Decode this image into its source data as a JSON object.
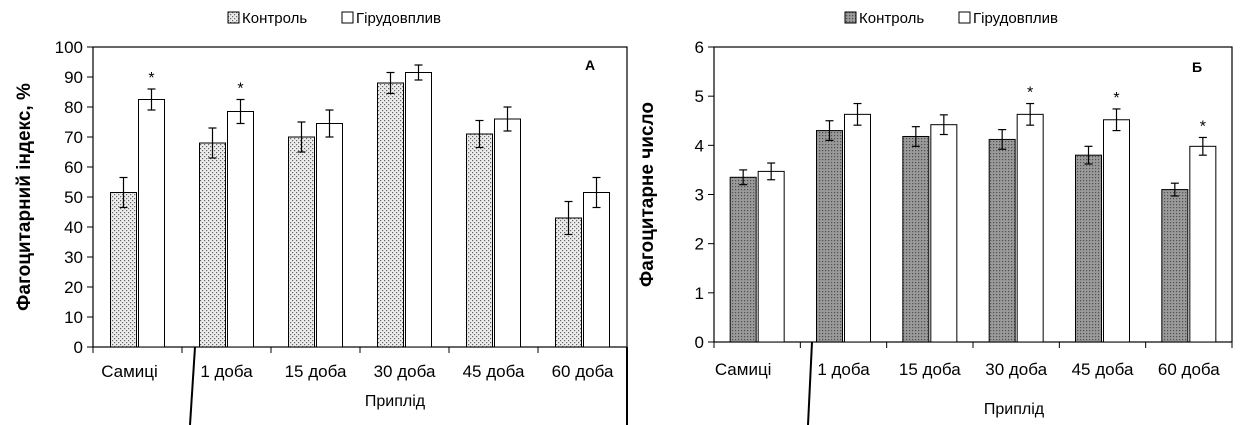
{
  "chart_data": [
    {
      "type": "bar",
      "panel_label": "А",
      "ylabel": "Фагоцитарний індекс, %",
      "xlabel": "Приплід",
      "ylim": [
        0,
        100
      ],
      "yticks": [
        0,
        10,
        20,
        30,
        40,
        50,
        60,
        70,
        80,
        90,
        100
      ],
      "categories": [
        "Самиці",
        "1 доба",
        "15 доба",
        "30 доба",
        "45 доба",
        "60 доба"
      ],
      "legend": "top",
      "series": [
        {
          "name": "Контроль",
          "fill": "dotted",
          "values": [
            51.5,
            68,
            70,
            88,
            71,
            43
          ],
          "errors": [
            5,
            5,
            5,
            3.5,
            4.5,
            5.5
          ]
        },
        {
          "name": "Гірудовплив",
          "fill": "white",
          "values": [
            82.5,
            78.5,
            74.5,
            91.5,
            76,
            51.5
          ],
          "errors": [
            3.5,
            4,
            4.5,
            2.5,
            4,
            5
          ]
        }
      ],
      "significance": [
        "*",
        "*",
        "",
        "",
        "",
        ""
      ]
    },
    {
      "type": "bar",
      "panel_label": "Б",
      "ylabel": "Фагоцитарне число",
      "xlabel": "Приплід",
      "ylim": [
        0,
        6
      ],
      "yticks": [
        0,
        1,
        2,
        3,
        4,
        5,
        6
      ],
      "categories": [
        "Самиці",
        "1 доба",
        "15 доба",
        "30 доба",
        "45 доба",
        "60 доба"
      ],
      "legend": "top",
      "series": [
        {
          "name": "Контроль",
          "fill": "dotted",
          "values": [
            3.35,
            4.3,
            4.18,
            4.12,
            3.8,
            3.1
          ],
          "errors": [
            0.15,
            0.2,
            0.2,
            0.2,
            0.18,
            0.13
          ]
        },
        {
          "name": "Гірудовплив",
          "fill": "white",
          "values": [
            3.47,
            4.63,
            4.42,
            4.63,
            4.52,
            3.98
          ],
          "errors": [
            0.17,
            0.22,
            0.2,
            0.22,
            0.22,
            0.18
          ]
        }
      ],
      "significance": [
        "",
        "",
        "",
        "*",
        "*",
        "*"
      ]
    }
  ]
}
